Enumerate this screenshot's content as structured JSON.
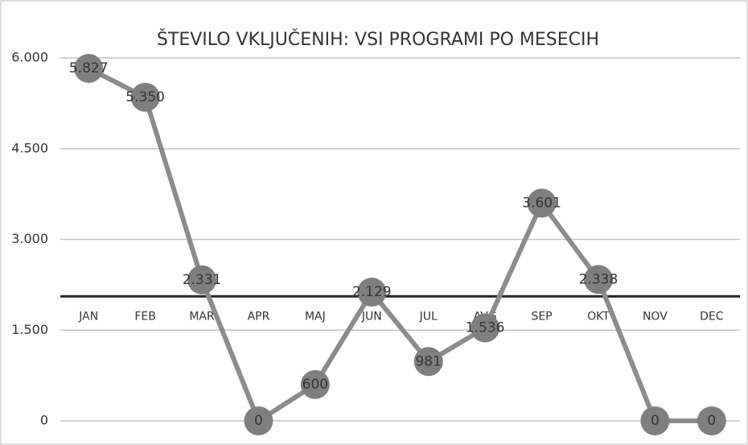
{
  "chart_data": {
    "type": "line",
    "title": "ŠTEVILO VKLJUČENIH: VSI PROGRAMI PO MESECIH",
    "categories": [
      "JAN",
      "FEB",
      "MAR",
      "APR",
      "MAJ",
      "JUN",
      "JUL",
      "AVG",
      "SEP",
      "OKT",
      "NOV",
      "DEC"
    ],
    "series": [
      {
        "name": "Vsi programi",
        "color": "#8c8c8c",
        "values": [
          5827,
          5350,
          2331,
          0,
          600,
          2129,
          981,
          1536,
          3601,
          2338,
          0,
          0
        ],
        "value_labels": [
          "5.827",
          "5.350",
          "2.331",
          "0",
          "600",
          "2.129",
          "981",
          "1.536",
          "3.601",
          "2.338",
          "0",
          "0"
        ]
      }
    ],
    "ylim": [
      0,
      6000
    ],
    "yticks": [
      0,
      {
        "value": 1500,
        "label": "1.500"
      },
      {
        "value": 3000,
        "label": "3.000"
      },
      {
        "value": 4500,
        "label": "4.500"
      },
      {
        "value": 6000,
        "label": "6.000"
      }
    ],
    "xaxis_at": 2058,
    "grid": true
  }
}
